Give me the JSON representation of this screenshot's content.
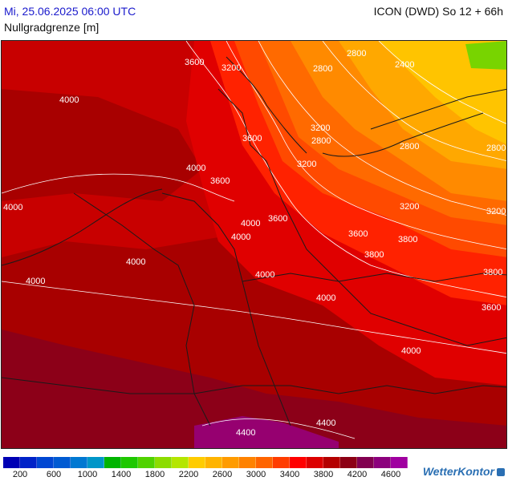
{
  "header": {
    "datetime": "Mi, 25.06.2025 06:00 UTC",
    "model": "ICON (DWD) So 12 + 66h",
    "parameter": "Nullgradgrenze [m]"
  },
  "map": {
    "contour_labels": [
      {
        "text": "3600"
      },
      {
        "text": "3200"
      },
      {
        "text": "2800"
      },
      {
        "text": "2800"
      },
      {
        "text": "2400"
      },
      {
        "text": "4000"
      },
      {
        "text": "3600"
      },
      {
        "text": "3200"
      },
      {
        "text": "2800"
      },
      {
        "text": "2800"
      },
      {
        "text": "2800"
      },
      {
        "text": "4000"
      },
      {
        "text": "3200"
      },
      {
        "text": "3600"
      },
      {
        "text": "4000"
      },
      {
        "text": "3600"
      },
      {
        "text": "4000"
      },
      {
        "text": "3200"
      },
      {
        "text": "3200"
      },
      {
        "text": "4000"
      },
      {
        "text": "3600"
      },
      {
        "text": "3800"
      },
      {
        "text": "3800"
      },
      {
        "text": "4000"
      },
      {
        "text": "4000"
      },
      {
        "text": "3800"
      },
      {
        "text": "4000"
      },
      {
        "text": "3600"
      },
      {
        "text": "4000"
      },
      {
        "text": "4000"
      },
      {
        "text": "4400"
      },
      {
        "text": "4400"
      }
    ]
  },
  "legend": {
    "colors": [
      "#0000b4",
      "#0022c8",
      "#0046d2",
      "#005ad2",
      "#0078d2",
      "#0096c8",
      "#00b400",
      "#1ec800",
      "#50d200",
      "#8cdc00",
      "#b4e600",
      "#ffcc00",
      "#ffb400",
      "#ff9b00",
      "#ff8200",
      "#ff6400",
      "#ff3c00",
      "#ff0000",
      "#dc0000",
      "#b40000",
      "#8c0014",
      "#820050",
      "#8c007d",
      "#a000a0"
    ],
    "labels": [
      "200",
      "600",
      "1000",
      "1400",
      "1800",
      "2200",
      "2600",
      "3000",
      "3400",
      "3800",
      "4200",
      "4600"
    ]
  },
  "brand": {
    "name": "WetterKontor"
  }
}
